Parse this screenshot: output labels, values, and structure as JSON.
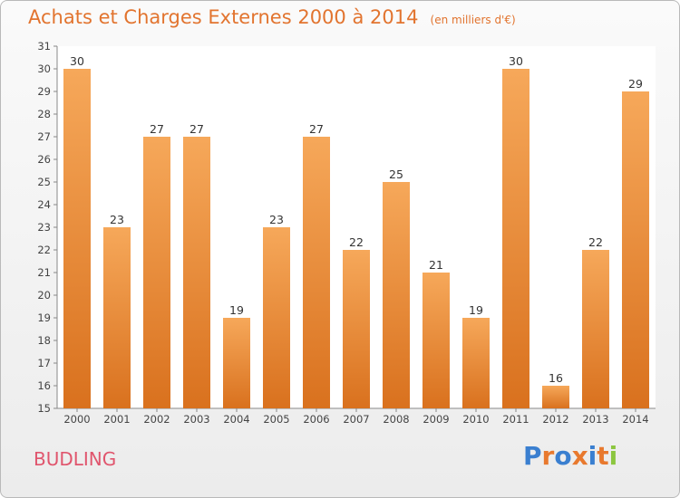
{
  "header": {
    "title": "Achats et Charges Externes 2000 à 2014",
    "subtitle": "(en milliers d'€)"
  },
  "footer": {
    "commune": "BUDLING",
    "brand": [
      "P",
      "r",
      "o",
      "x",
      "i",
      "t",
      "i"
    ]
  },
  "colors": {
    "title": "#e2742f",
    "commune": "#e0556d",
    "bar_top": "#f6a85a",
    "bar_bottom": "#d9711e",
    "brand_letters": [
      "#3a7fd0",
      "#e8792e",
      "#3a7fd0",
      "#e8792e",
      "#3a7fd0",
      "#e8792e",
      "#8cc63f"
    ]
  },
  "chart_data": {
    "type": "bar",
    "title": "Achats et Charges Externes 2000 à 2014",
    "subtitle": "(en milliers d'€)",
    "categories": [
      "2000",
      "2001",
      "2002",
      "2003",
      "2004",
      "2005",
      "2006",
      "2007",
      "2008",
      "2009",
      "2010",
      "2011",
      "2012",
      "2013",
      "2014"
    ],
    "values": [
      30,
      23,
      27,
      27,
      19,
      23,
      27,
      22,
      25,
      21,
      19,
      30,
      16,
      22,
      29
    ],
    "ylim": [
      15,
      31
    ],
    "yticks": [
      15,
      16,
      17,
      18,
      19,
      20,
      21,
      22,
      23,
      24,
      25,
      26,
      27,
      28,
      29,
      30,
      31
    ],
    "grid": false,
    "legend": "none"
  }
}
